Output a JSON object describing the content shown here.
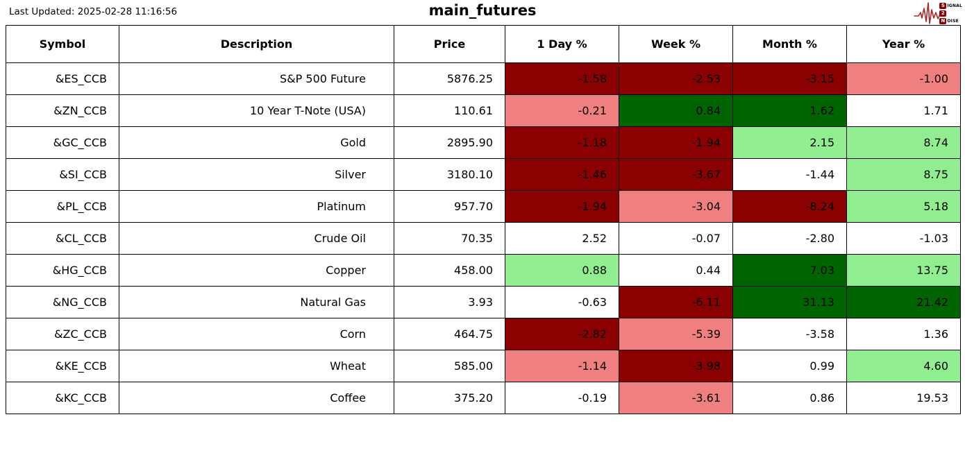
{
  "header": {
    "last_updated": "Last Updated: 2025-02-28 11:16:56",
    "title": "main_futures",
    "logo": {
      "box1": "S",
      "rest1": "IGNAL",
      "box2": "2",
      "box3": "N",
      "rest3": "OISE"
    }
  },
  "colors": {
    "dark_red": "#8B0000",
    "light_red": "#F08080",
    "dark_green": "#006400",
    "light_green": "#90EE90",
    "white": "#FFFFFF",
    "logo_wave": "#A52A2A",
    "border": "#000000"
  },
  "chart_data": {
    "type": "table",
    "title": "main_futures",
    "columns": [
      {
        "key": "symbol",
        "label": "Symbol"
      },
      {
        "key": "description",
        "label": "Description"
      },
      {
        "key": "price",
        "label": "Price"
      },
      {
        "key": "day",
        "label": "1 Day %"
      },
      {
        "key": "week",
        "label": "Week %"
      },
      {
        "key": "month",
        "label": "Month %"
      },
      {
        "key": "year",
        "label": "Year %"
      }
    ],
    "rows": [
      {
        "symbol": "&ES_CCB",
        "description": "S&P 500 Future",
        "price": "5876.25",
        "day": {
          "v": "-1.58",
          "c": "dark_red"
        },
        "week": {
          "v": "-2.53",
          "c": "dark_red"
        },
        "month": {
          "v": "-3.15",
          "c": "dark_red"
        },
        "year": {
          "v": "-1.00",
          "c": "light_red"
        }
      },
      {
        "symbol": "&ZN_CCB",
        "description": "10 Year T-Note (USA)",
        "price": "110.61",
        "day": {
          "v": "-0.21",
          "c": "light_red"
        },
        "week": {
          "v": "0.84",
          "c": "dark_green"
        },
        "month": {
          "v": "1.62",
          "c": "dark_green"
        },
        "year": {
          "v": "1.71",
          "c": "white"
        }
      },
      {
        "symbol": "&GC_CCB",
        "description": "Gold",
        "price": "2895.90",
        "day": {
          "v": "-1.18",
          "c": "dark_red"
        },
        "week": {
          "v": "-1.94",
          "c": "dark_red"
        },
        "month": {
          "v": "2.15",
          "c": "light_green"
        },
        "year": {
          "v": "8.74",
          "c": "light_green"
        }
      },
      {
        "symbol": "&SI_CCB",
        "description": "Silver",
        "price": "3180.10",
        "day": {
          "v": "-1.46",
          "c": "dark_red"
        },
        "week": {
          "v": "-3.67",
          "c": "dark_red"
        },
        "month": {
          "v": "-1.44",
          "c": "white"
        },
        "year": {
          "v": "8.75",
          "c": "light_green"
        }
      },
      {
        "symbol": "&PL_CCB",
        "description": "Platinum",
        "price": "957.70",
        "day": {
          "v": "-1.94",
          "c": "dark_red"
        },
        "week": {
          "v": "-3.04",
          "c": "light_red"
        },
        "month": {
          "v": "-8.24",
          "c": "dark_red"
        },
        "year": {
          "v": "5.18",
          "c": "light_green"
        }
      },
      {
        "symbol": "&CL_CCB",
        "description": "Crude Oil",
        "price": "70.35",
        "day": {
          "v": "2.52",
          "c": "white"
        },
        "week": {
          "v": "-0.07",
          "c": "white"
        },
        "month": {
          "v": "-2.80",
          "c": "white"
        },
        "year": {
          "v": "-1.03",
          "c": "white"
        }
      },
      {
        "symbol": "&HG_CCB",
        "description": "Copper",
        "price": "458.00",
        "day": {
          "v": "0.88",
          "c": "light_green"
        },
        "week": {
          "v": "0.44",
          "c": "white"
        },
        "month": {
          "v": "7.03",
          "c": "dark_green"
        },
        "year": {
          "v": "13.75",
          "c": "light_green"
        }
      },
      {
        "symbol": "&NG_CCB",
        "description": "Natural Gas",
        "price": "3.93",
        "day": {
          "v": "-0.63",
          "c": "white"
        },
        "week": {
          "v": "-6.11",
          "c": "dark_red"
        },
        "month": {
          "v": "31.13",
          "c": "dark_green"
        },
        "year": {
          "v": "21.42",
          "c": "dark_green"
        }
      },
      {
        "symbol": "&ZC_CCB",
        "description": "Corn",
        "price": "464.75",
        "day": {
          "v": "-2.82",
          "c": "dark_red"
        },
        "week": {
          "v": "-5.39",
          "c": "light_red"
        },
        "month": {
          "v": "-3.58",
          "c": "white"
        },
        "year": {
          "v": "1.36",
          "c": "white"
        }
      },
      {
        "symbol": "&KE_CCB",
        "description": "Wheat",
        "price": "585.00",
        "day": {
          "v": "-1.14",
          "c": "light_red"
        },
        "week": {
          "v": "-3.98",
          "c": "dark_red"
        },
        "month": {
          "v": "0.99",
          "c": "white"
        },
        "year": {
          "v": "4.60",
          "c": "light_green"
        }
      },
      {
        "symbol": "&KC_CCB",
        "description": "Coffee",
        "price": "375.20",
        "day": {
          "v": "-0.19",
          "c": "white"
        },
        "week": {
          "v": "-3.61",
          "c": "light_red"
        },
        "month": {
          "v": "0.86",
          "c": "white"
        },
        "year": {
          "v": "19.53",
          "c": "white"
        }
      }
    ]
  }
}
